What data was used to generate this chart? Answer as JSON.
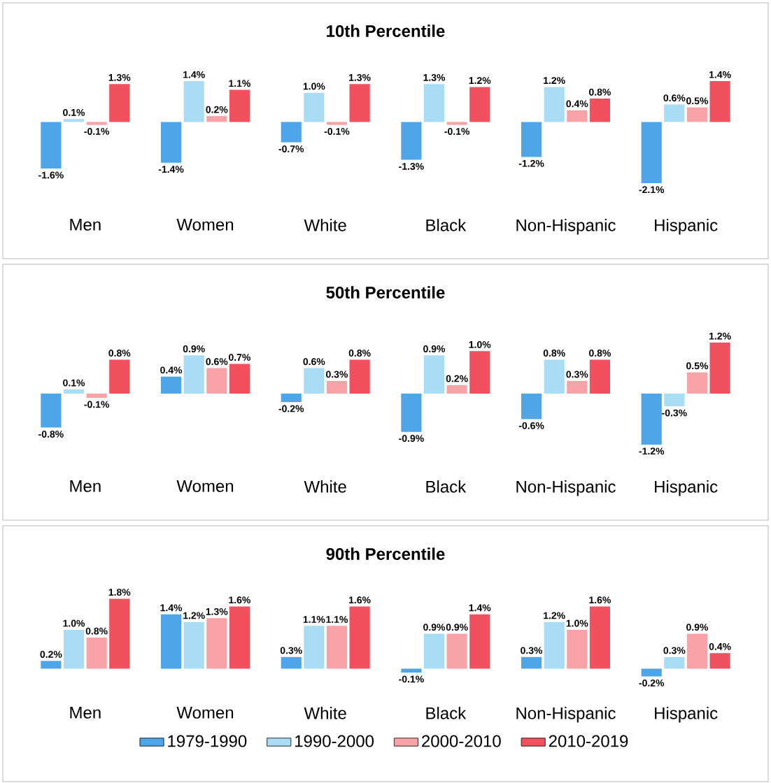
{
  "chart_data": [
    {
      "type": "bar",
      "title": "10th Percentile",
      "categories": [
        "Men",
        "Women",
        "White",
        "Black",
        "Non-Hispanic",
        "Hispanic"
      ],
      "series": [
        {
          "color": "#4ea6e8",
          "values": [
            -1.6,
            -1.4,
            -0.7,
            -1.3,
            -1.2,
            -2.1
          ],
          "value_labels": [
            "-1.6%",
            "-1.4%",
            "-0.7%",
            "-1.3%",
            "-1.2%",
            "-2.1%"
          ]
        },
        {
          "color": "#a9dcf5",
          "values": [
            0.1,
            1.4,
            1.0,
            1.3,
            1.2,
            0.6
          ],
          "value_labels": [
            "0.1%",
            "1.4%",
            "1.0%",
            "1.3%",
            "1.2%",
            "0.6%"
          ]
        },
        {
          "color": "#f7a3a8",
          "values": [
            -0.1,
            0.2,
            -0.1,
            -0.1,
            0.4,
            0.5
          ],
          "value_labels": [
            "-0.1%",
            "0.2%",
            "-0.1%",
            "-0.1%",
            "0.4%",
            "0.5%"
          ]
        },
        {
          "color": "#f1515e",
          "values": [
            1.3,
            1.1,
            1.3,
            1.2,
            0.8,
            1.4
          ],
          "value_labels": [
            "1.3%",
            "1.1%",
            "1.3%",
            "1.2%",
            "0.8%",
            "1.4%"
          ]
        }
      ]
    },
    {
      "type": "bar",
      "title": "50th Percentile",
      "categories": [
        "Men",
        "Women",
        "White",
        "Black",
        "Non-Hispanic",
        "Hispanic"
      ],
      "series": [
        {
          "color": "#4ea6e8",
          "values": [
            -0.8,
            0.4,
            -0.2,
            -0.9,
            -0.6,
            -1.2
          ],
          "value_labels": [
            "-0.8%",
            "0.4%",
            "-0.2%",
            "-0.9%",
            "-0.6%",
            "-1.2%"
          ]
        },
        {
          "color": "#a9dcf5",
          "values": [
            0.1,
            0.9,
            0.6,
            0.9,
            0.8,
            -0.3
          ],
          "value_labels": [
            "0.1%",
            "0.9%",
            "0.6%",
            "0.9%",
            "0.8%",
            "-0.3%"
          ]
        },
        {
          "color": "#f7a3a8",
          "values": [
            -0.1,
            0.6,
            0.3,
            0.2,
            0.3,
            0.5
          ],
          "value_labels": [
            "-0.1%",
            "0.6%",
            "0.3%",
            "0.2%",
            "0.3%",
            "0.5%"
          ]
        },
        {
          "color": "#f1515e",
          "values": [
            0.8,
            0.7,
            0.8,
            1.0,
            0.8,
            1.2
          ],
          "value_labels": [
            "0.8%",
            "0.7%",
            "0.8%",
            "1.0%",
            "0.8%",
            "1.2%"
          ]
        }
      ]
    },
    {
      "type": "bar",
      "title": "90th Percentile",
      "categories": [
        "Men",
        "Women",
        "White",
        "Black",
        "Non-Hispanic",
        "Hispanic"
      ],
      "legend": "bottom",
      "series": [
        {
          "name": "1979-1990",
          "color": "#4ea6e8",
          "values": [
            0.2,
            1.4,
            0.3,
            -0.1,
            0.3,
            -0.2
          ],
          "value_labels": [
            "0.2%",
            "1.4%",
            "0.3%",
            "-0.1%",
            "0.3%",
            "-0.2%"
          ]
        },
        {
          "name": "1990-2000",
          "color": "#a9dcf5",
          "values": [
            1.0,
            1.2,
            1.1,
            0.9,
            1.2,
            0.3
          ],
          "value_labels": [
            "1.0%",
            "1.2%",
            "1.1%",
            "0.9%",
            "1.2%",
            "0.3%"
          ]
        },
        {
          "name": "2000-2010",
          "color": "#f7a3a8",
          "values": [
            0.8,
            1.3,
            1.1,
            0.9,
            1.0,
            0.9
          ],
          "value_labels": [
            "0.8%",
            "1.3%",
            "1.1%",
            "0.9%",
            "1.0%",
            "0.9%"
          ]
        },
        {
          "name": "2010-2019",
          "color": "#f1515e",
          "values": [
            1.8,
            1.6,
            1.6,
            1.4,
            1.6,
            0.4
          ],
          "value_labels": [
            "1.8%",
            "1.6%",
            "1.6%",
            "1.4%",
            "1.6%",
            "0.4%"
          ]
        }
      ]
    }
  ]
}
